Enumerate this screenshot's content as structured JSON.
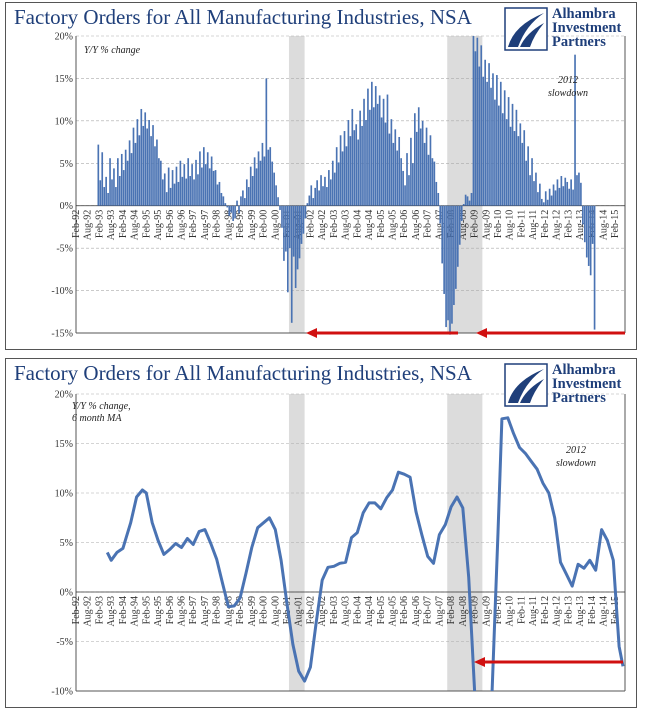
{
  "chart_data": [
    {
      "type": "bar",
      "title": "Factory Orders for All Manufacturing Industries, NSA",
      "subtitle": "Y/Y % change",
      "annotation": "2012 slowdown",
      "ylim": [
        -15,
        20
      ],
      "y_ticks": [
        "20%",
        "15%",
        "10%",
        "5%",
        "0%",
        "-5%",
        "-10%",
        "-15%"
      ],
      "x_ticks": [
        "Feb-92",
        "Aug-92",
        "Feb-93",
        "Aug-93",
        "Feb-94",
        "Aug-94",
        "Feb-95",
        "Aug-95",
        "Feb-96",
        "Aug-96",
        "Feb-97",
        "Aug-97",
        "Feb-98",
        "Aug-98",
        "Feb-99",
        "Aug-99",
        "Feb-00",
        "Aug-00",
        "Feb-01",
        "Aug-01",
        "Feb-02",
        "Aug-02",
        "Feb-03",
        "Aug-03",
        "Feb-04",
        "Aug-04",
        "Feb-05",
        "Aug-05",
        "Feb-06",
        "Aug-06",
        "Feb-07",
        "Aug-07",
        "Feb-08",
        "Aug-08",
        "Feb-09",
        "Aug-09",
        "Feb-10",
        "Aug-10",
        "Feb-11",
        "Aug-11",
        "Feb-12",
        "Aug-12",
        "Feb-13",
        "Aug-13",
        "Feb-14",
        "Aug-14",
        "Feb-15"
      ],
      "recessions": [
        [
          "2001-03",
          "2001-11"
        ],
        [
          "2007-12",
          "2009-06"
        ]
      ],
      "grid": true,
      "color": "#4a73b3",
      "x_start": "1993-01",
      "x_end": "2015-06",
      "values": [
        7.2,
        3.0,
        6.3,
        2.2,
        3.4,
        1.5,
        5.6,
        3.1,
        4.4,
        2.2,
        5.6,
        3.5,
        6.1,
        4.2,
        6.6,
        5.3,
        7.7,
        6.2,
        9.2,
        7.4,
        10.2,
        8.3,
        11.4,
        9.4,
        11.0,
        9.1,
        10.1,
        8.2,
        9.5,
        7.0,
        7.8,
        5.6,
        5.3,
        3.1,
        3.8,
        1.6,
        4.5,
        2.1,
        4.2,
        2.6,
        4.6,
        2.8,
        5.3,
        3.4,
        4.9,
        3.2,
        5.6,
        3.5,
        4.9,
        3.1,
        5.4,
        3.7,
        6.4,
        4.5,
        6.9,
        4.9,
        6.3,
        4.4,
        5.8,
        4.1,
        4.2,
        2.5,
        2.8,
        1.5,
        1.1,
        0.3,
        -0.2,
        -1.2,
        -0.8,
        -1.8,
        -1.5,
        0.6,
        -0.9,
        1.1,
        1.8,
        0.9,
        3.1,
        2.2,
        4.6,
        3.5,
        5.7,
        4.4,
        6.4,
        5.3,
        7.4,
        5.8,
        15.0,
        6.6,
        6.9,
        5.2,
        3.9,
        2.4,
        1.0,
        -0.5,
        -2.6,
        -6.5,
        -5.4,
        -10.2,
        -5.0,
        -13.8,
        -6.0,
        -9.7,
        -7.5,
        -6.2,
        -4.5,
        -3.3,
        -1.5,
        0.3,
        1.2,
        2.4,
        0.9,
        2.1,
        3.0,
        1.8,
        3.6,
        2.3,
        3.4,
        2.2,
        4.2,
        3.1,
        5.3,
        3.9,
        6.9,
        5.1,
        8.3,
        6.4,
        8.8,
        7.0,
        10.1,
        8.2,
        11.4,
        8.9,
        9.6,
        7.8,
        11.2,
        9.4,
        12.6,
        10.1,
        13.8,
        11.3,
        14.6,
        11.6,
        14.1,
        12.0,
        13.0,
        10.4,
        12.6,
        9.8,
        13.1,
        8.5,
        10.2,
        7.4,
        9.0,
        6.5,
        8.1,
        5.6,
        4.1,
        2.4,
        6.2,
        3.6,
        8.0,
        5.0,
        10.9,
        8.7,
        11.6,
        9.1,
        10.0,
        7.4,
        9.2,
        6.0,
        8.3,
        5.6,
        5.2,
        2.8,
        1.5,
        -2.1,
        -6.8,
        -10.4,
        -14.3,
        -13.5,
        -15.2,
        -13.9,
        -11.7,
        -9.8,
        -7.2,
        -4.6,
        -1.8,
        0.2,
        1.3,
        1.1,
        0.6,
        1.5,
        20.0,
        18.2,
        19.8,
        16.4,
        18.9,
        15.2,
        17.2,
        14.6,
        16.8,
        13.9,
        15.6,
        12.5,
        15.4,
        11.8,
        14.6,
        10.9,
        13.6,
        10.2,
        12.8,
        9.3,
        12.0,
        8.8,
        11.3,
        8.2,
        9.7,
        7.4,
        8.9,
        5.3,
        7.0,
        3.6,
        5.6,
        2.9,
        3.9,
        1.6,
        2.6,
        0.8,
        0.4,
        1.7,
        0.7,
        2.0,
        1.2,
        2.5,
        1.8,
        3.1,
        2.1,
        3.5,
        2.3,
        3.3,
        2.8,
        2.0,
        3.1,
        1.9,
        17.8,
        3.6,
        3.9,
        2.7,
        -2.2,
        -4.3,
        -6.1,
        -7.1,
        -8.2,
        -4.5,
        -14.6
      ]
    },
    {
      "type": "line",
      "title": "Factory Orders for All Manufacturing Industries, NSA",
      "subtitle_lines": [
        "Y/Y % change,",
        "6 month MA"
      ],
      "annotation": "2012 slowdown",
      "ylim": [
        -10,
        20
      ],
      "y_ticks": [
        "20%",
        "15%",
        "10%",
        "5%",
        "0%",
        "-5%",
        "-10%"
      ],
      "x_ticks": [
        "Feb-92",
        "Aug-92",
        "Feb-93",
        "Aug-93",
        "Feb-94",
        "Aug-94",
        "Feb-95",
        "Aug-95",
        "Feb-96",
        "Aug-96",
        "Feb-97",
        "Aug-97",
        "Feb-98",
        "Aug-98",
        "Feb-99",
        "Aug-99",
        "Feb-00",
        "Aug-00",
        "Feb-01",
        "Aug-01",
        "Feb-02",
        "Aug-02",
        "Feb-03",
        "Aug-03",
        "Feb-04",
        "Aug-04",
        "Feb-05",
        "Aug-05",
        "Feb-06",
        "Aug-06",
        "Feb-07",
        "Aug-07",
        "Feb-08",
        "Aug-08",
        "Feb-09",
        "Aug-09",
        "Feb-10",
        "Aug-10",
        "Feb-11",
        "Aug-11",
        "Feb-12",
        "Aug-12",
        "Feb-13",
        "Aug-13",
        "Feb-14",
        "Aug-14",
        "Feb-15"
      ],
      "recessions": [
        [
          "2001-03",
          "2001-11"
        ],
        [
          "2007-12",
          "2009-06"
        ]
      ],
      "grid": true,
      "color": "#4a73b3",
      "series": [
        {
          "x": [
            "1993-06",
            "1993-08",
            "1993-11",
            "1994-02",
            "1994-06",
            "1994-09",
            "1994-12",
            "1995-02",
            "1995-05",
            "1995-08",
            "1995-11",
            "1996-02",
            "1996-05",
            "1996-08",
            "1996-11",
            "1997-02",
            "1997-05",
            "1997-08",
            "1997-11",
            "1998-02",
            "1998-05",
            "1998-08",
            "1998-11",
            "1999-02",
            "1999-05",
            "1999-08",
            "1999-11",
            "2000-02",
            "2000-05",
            "2000-08",
            "2000-11",
            "2001-02",
            "2001-05",
            "2001-08",
            "2001-11",
            "2002-02",
            "2002-05",
            "2002-08",
            "2002-11",
            "2003-02",
            "2003-05",
            "2003-08",
            "2003-11",
            "2004-02",
            "2004-05",
            "2004-08",
            "2004-11",
            "2005-02",
            "2005-05",
            "2005-08",
            "2005-11",
            "2006-02",
            "2006-05",
            "2006-08",
            "2006-11",
            "2007-02",
            "2007-05",
            "2007-08",
            "2007-11",
            "2008-02",
            "2008-05",
            "2008-08",
            "2008-11",
            "2009-02",
            "2009-05",
            "2009-08",
            "2009-11",
            "2010-02",
            "2010-04",
            "2010-07",
            "2010-10",
            "2011-01",
            "2011-04",
            "2011-07",
            "2011-10",
            "2012-01",
            "2012-04",
            "2012-07",
            "2012-10",
            "2013-01",
            "2013-04",
            "2013-07",
            "2013-10",
            "2014-01",
            "2014-04",
            "2014-07",
            "2014-10",
            "2015-01",
            "2015-04",
            "2015-06"
          ],
          "values": [
            4.0,
            3.2,
            4.0,
            4.4,
            7.0,
            9.6,
            10.3,
            10.0,
            7.0,
            5.2,
            3.8,
            4.3,
            4.9,
            4.5,
            5.4,
            4.8,
            6.1,
            6.3,
            4.9,
            3.3,
            0.9,
            -1.5,
            -1.4,
            -0.6,
            1.9,
            4.5,
            6.5,
            7.0,
            7.5,
            6.3,
            3.2,
            -1.2,
            -5.3,
            -8.0,
            -9.0,
            -7.6,
            -3.0,
            1.2,
            2.5,
            2.6,
            2.9,
            3.0,
            5.5,
            6.0,
            8.0,
            9.0,
            9.0,
            8.4,
            9.5,
            10.3,
            12.1,
            11.9,
            11.6,
            8.1,
            5.8,
            3.6,
            2.9,
            5.8,
            6.8,
            8.6,
            9.6,
            8.5,
            1.5,
            -10.0,
            -14.0,
            -12.0,
            -10.0,
            6.0,
            17.5,
            17.6,
            16.0,
            14.6,
            14.0,
            13.2,
            12.4,
            11.0,
            10.0,
            7.5,
            3.0,
            1.8,
            0.6,
            2.8,
            2.4,
            3.2,
            2.2,
            6.3,
            5.2,
            3.2,
            -5.5,
            -7.5
          ]
        }
      ]
    }
  ],
  "logo": {
    "line1": "Alhambra",
    "line2": "Investment",
    "line3": "Partners"
  }
}
